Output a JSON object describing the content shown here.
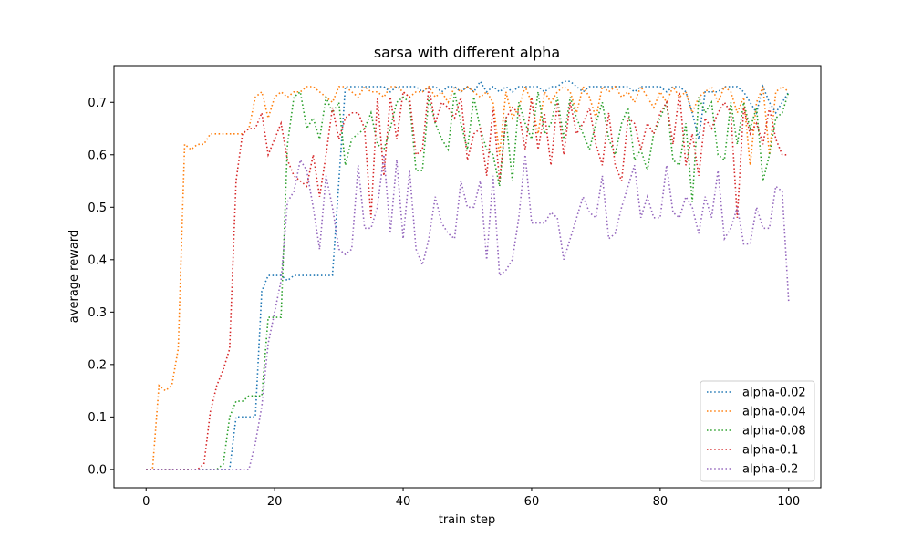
{
  "chart_data": {
    "type": "line",
    "title": "sarsa with different alpha",
    "xlabel": "train step",
    "ylabel": "average reward",
    "xlim": [
      -5,
      105
    ],
    "ylim": [
      -0.035,
      0.77
    ],
    "xticks": [
      0,
      20,
      40,
      60,
      80,
      100
    ],
    "yticks": [
      0.0,
      0.1,
      0.2,
      0.3,
      0.4,
      0.5,
      0.6,
      0.7
    ],
    "grid": false,
    "legend_position": "lower-right",
    "line_style": "dotted",
    "x": [
      0,
      1,
      2,
      3,
      4,
      5,
      6,
      7,
      8,
      9,
      10,
      11,
      12,
      13,
      14,
      15,
      16,
      17,
      18,
      19,
      20,
      21,
      22,
      23,
      24,
      25,
      26,
      27,
      28,
      29,
      30,
      31,
      32,
      33,
      34,
      35,
      36,
      37,
      38,
      39,
      40,
      41,
      42,
      43,
      44,
      45,
      46,
      47,
      48,
      49,
      50,
      51,
      52,
      53,
      54,
      55,
      56,
      57,
      58,
      59,
      60,
      61,
      62,
      63,
      64,
      65,
      66,
      67,
      68,
      69,
      70,
      71,
      72,
      73,
      74,
      75,
      76,
      77,
      78,
      79,
      80,
      81,
      82,
      83,
      84,
      85,
      86,
      87,
      88,
      89,
      90,
      91,
      92,
      93,
      94,
      95,
      96,
      97,
      98,
      99,
      100
    ],
    "series": [
      {
        "name": "alpha-0.02",
        "color": "#1f77b4",
        "values": [
          0,
          0,
          0,
          0,
          0,
          0,
          0,
          0,
          0,
          0,
          0,
          0,
          0,
          0,
          0.1,
          0.1,
          0.1,
          0.1,
          0.34,
          0.37,
          0.37,
          0.37,
          0.36,
          0.37,
          0.37,
          0.37,
          0.37,
          0.37,
          0.37,
          0.37,
          0.55,
          0.73,
          0.73,
          0.73,
          0.73,
          0.73,
          0.73,
          0.73,
          0.72,
          0.73,
          0.73,
          0.73,
          0.73,
          0.72,
          0.73,
          0.73,
          0.72,
          0.73,
          0.73,
          0.72,
          0.73,
          0.72,
          0.74,
          0.72,
          0.73,
          0.72,
          0.73,
          0.72,
          0.73,
          0.73,
          0.73,
          0.73,
          0.72,
          0.73,
          0.73,
          0.74,
          0.74,
          0.73,
          0.72,
          0.73,
          0.73,
          0.73,
          0.73,
          0.73,
          0.73,
          0.73,
          0.72,
          0.73,
          0.73,
          0.73,
          0.73,
          0.72,
          0.73,
          0.73,
          0.72,
          0.68,
          0.63,
          0.72,
          0.72,
          0.72,
          0.73,
          0.73,
          0.73,
          0.72,
          0.7,
          0.68,
          0.73,
          0.7,
          0.68,
          0.7,
          0.72
        ]
      },
      {
        "name": "alpha-0.04",
        "color": "#ff7f0e",
        "values": [
          0,
          0,
          0.16,
          0.15,
          0.16,
          0.23,
          0.62,
          0.61,
          0.62,
          0.62,
          0.64,
          0.64,
          0.64,
          0.64,
          0.64,
          0.64,
          0.65,
          0.71,
          0.72,
          0.67,
          0.71,
          0.72,
          0.71,
          0.72,
          0.72,
          0.73,
          0.73,
          0.72,
          0.71,
          0.7,
          0.73,
          0.73,
          0.72,
          0.71,
          0.73,
          0.72,
          0.72,
          0.71,
          0.73,
          0.73,
          0.72,
          0.71,
          0.72,
          0.72,
          0.73,
          0.71,
          0.72,
          0.7,
          0.73,
          0.72,
          0.73,
          0.72,
          0.71,
          0.72,
          0.7,
          0.6,
          0.72,
          0.67,
          0.69,
          0.73,
          0.7,
          0.64,
          0.72,
          0.7,
          0.72,
          0.73,
          0.72,
          0.68,
          0.73,
          0.71,
          0.67,
          0.73,
          0.72,
          0.73,
          0.71,
          0.72,
          0.7,
          0.73,
          0.71,
          0.69,
          0.72,
          0.7,
          0.73,
          0.71,
          0.72,
          0.68,
          0.71,
          0.72,
          0.73,
          0.7,
          0.73,
          0.72,
          0.68,
          0.71,
          0.58,
          0.7,
          0.73,
          0.6,
          0.72,
          0.73,
          0.72
        ]
      },
      {
        "name": "alpha-0.08",
        "color": "#2ca02c",
        "values": [
          0,
          0,
          0,
          0,
          0,
          0,
          0,
          0,
          0,
          0,
          0,
          0,
          0.01,
          0.1,
          0.13,
          0.13,
          0.14,
          0.14,
          0.14,
          0.29,
          0.29,
          0.29,
          0.62,
          0.71,
          0.72,
          0.65,
          0.67,
          0.63,
          0.71,
          0.68,
          0.7,
          0.58,
          0.63,
          0.64,
          0.65,
          0.68,
          0.62,
          0.61,
          0.65,
          0.7,
          0.71,
          0.7,
          0.57,
          0.57,
          0.71,
          0.66,
          0.63,
          0.61,
          0.72,
          0.66,
          0.61,
          0.71,
          0.65,
          0.61,
          0.6,
          0.54,
          0.67,
          0.55,
          0.7,
          0.66,
          0.63,
          0.72,
          0.64,
          0.66,
          0.71,
          0.63,
          0.71,
          0.67,
          0.64,
          0.61,
          0.66,
          0.7,
          0.63,
          0.6,
          0.66,
          0.69,
          0.59,
          0.61,
          0.57,
          0.64,
          0.67,
          0.7,
          0.59,
          0.58,
          0.66,
          0.51,
          0.71,
          0.68,
          0.7,
          0.6,
          0.59,
          0.7,
          0.62,
          0.7,
          0.65,
          0.69,
          0.55,
          0.6,
          0.67,
          0.68,
          0.72
        ]
      },
      {
        "name": "alpha-0.1",
        "color": "#d62728",
        "values": [
          0,
          0,
          0,
          0,
          0,
          0,
          0,
          0,
          0,
          0.01,
          0.11,
          0.16,
          0.19,
          0.23,
          0.55,
          0.64,
          0.65,
          0.65,
          0.68,
          0.6,
          0.63,
          0.66,
          0.59,
          0.56,
          0.55,
          0.54,
          0.6,
          0.52,
          0.6,
          0.69,
          0.63,
          0.67,
          0.68,
          0.68,
          0.65,
          0.48,
          0.71,
          0.56,
          0.71,
          0.63,
          0.72,
          0.71,
          0.6,
          0.61,
          0.73,
          0.66,
          0.7,
          0.69,
          0.67,
          0.71,
          0.59,
          0.64,
          0.65,
          0.56,
          0.69,
          0.55,
          0.67,
          0.69,
          0.68,
          0.61,
          0.71,
          0.61,
          0.68,
          0.58,
          0.7,
          0.6,
          0.7,
          0.64,
          0.66,
          0.69,
          0.62,
          0.58,
          0.68,
          0.58,
          0.55,
          0.67,
          0.66,
          0.61,
          0.66,
          0.64,
          0.68,
          0.7,
          0.62,
          0.72,
          0.58,
          0.64,
          0.56,
          0.67,
          0.65,
          0.68,
          0.7,
          0.68,
          0.48,
          0.69,
          0.64,
          0.66,
          0.62,
          0.69,
          0.63,
          0.6,
          0.6
        ]
      },
      {
        "name": "alpha-0.2",
        "color": "#9467bd",
        "values": [
          0,
          0,
          0,
          0,
          0,
          0,
          0,
          0,
          0,
          0,
          0,
          0,
          0,
          0,
          0,
          0,
          0,
          0.05,
          0.12,
          0.24,
          0.3,
          0.36,
          0.51,
          0.53,
          0.59,
          0.57,
          0.5,
          0.42,
          0.56,
          0.5,
          0.42,
          0.41,
          0.42,
          0.58,
          0.46,
          0.46,
          0.5,
          0.6,
          0.45,
          0.59,
          0.44,
          0.57,
          0.42,
          0.39,
          0.44,
          0.52,
          0.47,
          0.45,
          0.44,
          0.55,
          0.5,
          0.5,
          0.55,
          0.4,
          0.56,
          0.37,
          0.38,
          0.4,
          0.48,
          0.6,
          0.47,
          0.47,
          0.47,
          0.49,
          0.48,
          0.4,
          0.44,
          0.48,
          0.52,
          0.49,
          0.48,
          0.56,
          0.44,
          0.45,
          0.5,
          0.54,
          0.58,
          0.48,
          0.52,
          0.48,
          0.48,
          0.58,
          0.49,
          0.48,
          0.52,
          0.5,
          0.45,
          0.52,
          0.48,
          0.57,
          0.44,
          0.46,
          0.5,
          0.43,
          0.43,
          0.5,
          0.46,
          0.46,
          0.54,
          0.53,
          0.32
        ]
      }
    ]
  }
}
